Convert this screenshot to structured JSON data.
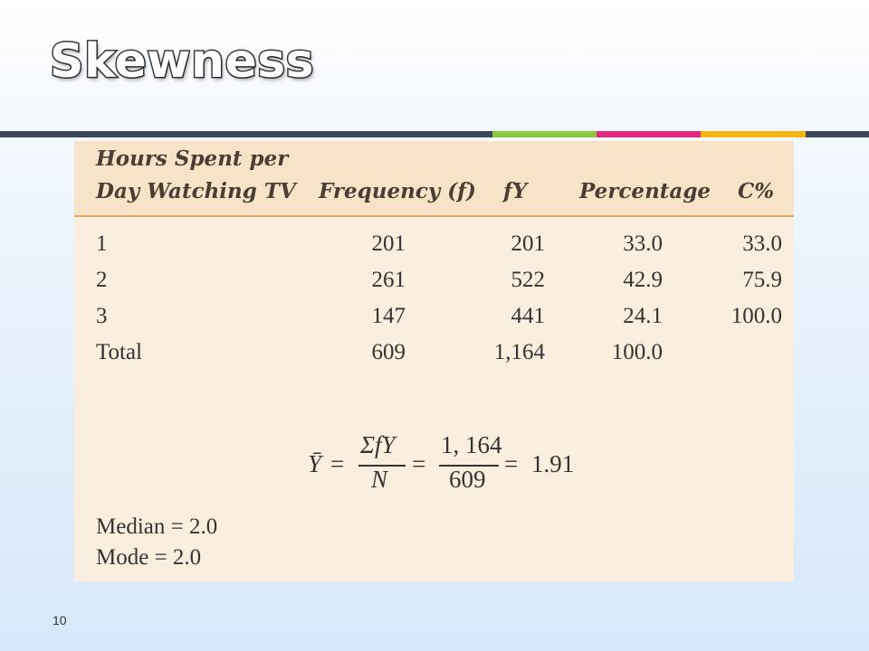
{
  "slide": {
    "title": "Skewness",
    "page_number": "10",
    "accent_bar_colors": [
      "#3b4656",
      "#8dc63f",
      "#e2287f",
      "#f7b512",
      "#3b4656"
    ]
  },
  "table": {
    "headers": {
      "hours_line1": "Hours Spent per",
      "hours_line2": "Day Watching TV",
      "frequency": "Frequency (f)",
      "fy": "fY",
      "percentage": "Percentage",
      "cpct": "C%"
    },
    "rows": [
      {
        "hours": "1",
        "frequency": "201",
        "fy": "201",
        "percentage": "33.0",
        "cpct": "33.0"
      },
      {
        "hours": "2",
        "frequency": "261",
        "fy": "522",
        "percentage": "42.9",
        "cpct": "75.9"
      },
      {
        "hours": "3",
        "frequency": "147",
        "fy": "441",
        "percentage": "24.1",
        "cpct": "100.0"
      },
      {
        "hours": "Total",
        "frequency": "609",
        "fy": "1,164",
        "percentage": "100.0",
        "cpct": ""
      }
    ]
  },
  "formula": {
    "lhs": "Ȳ",
    "eq": "=",
    "num1": "ΣfY",
    "den1": "N",
    "num2": "1, 164",
    "den2": "609",
    "result": "1.91"
  },
  "stats": {
    "median": "Median = 2.0",
    "mode": "Mode = 2.0"
  }
}
